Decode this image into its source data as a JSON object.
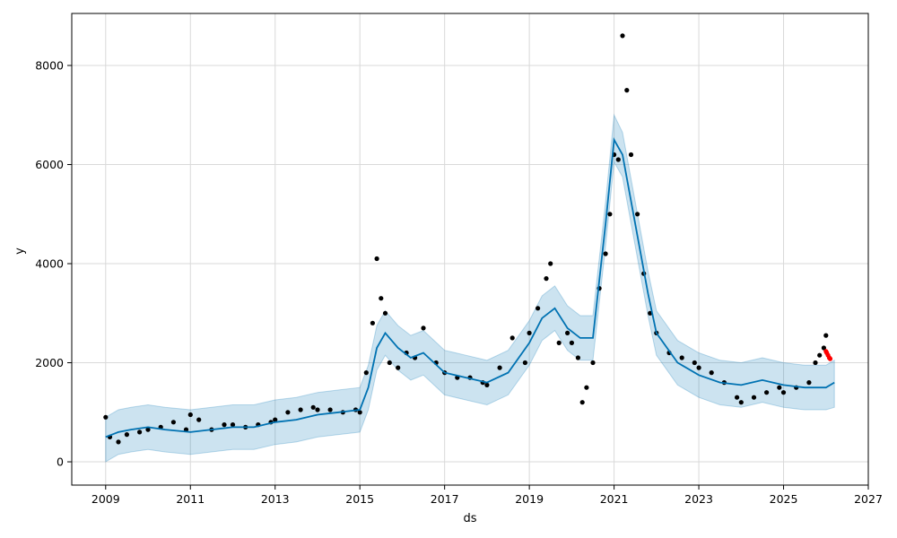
{
  "chart_data": {
    "type": "line",
    "title": "",
    "xlabel": "ds",
    "ylabel": "y",
    "xlim": [
      2008.2,
      2027.0
    ],
    "ylim": [
      -470,
      9050
    ],
    "x_ticks": [
      2009,
      2011,
      2013,
      2015,
      2017,
      2019,
      2021,
      2023,
      2025,
      2027
    ],
    "x_tick_labels": [
      "2009",
      "2011",
      "2013",
      "2015",
      "2017",
      "2019",
      "2021",
      "2023",
      "2025",
      "2027"
    ],
    "y_ticks": [
      0,
      2000,
      4000,
      6000,
      8000
    ],
    "y_tick_labels": [
      "0",
      "2000",
      "4000",
      "6000",
      "8000"
    ],
    "grid": true,
    "colors": {
      "observed": "#000000",
      "forecast_line": "#0072B2",
      "uncertainty_band": "#0072B2",
      "recent_actual": "#ff0000"
    },
    "series": [
      {
        "role": "observed",
        "style": "scatter",
        "x": [
          2009.0,
          2009.1,
          2009.3,
          2009.5,
          2009.8,
          2010.0,
          2010.3,
          2010.6,
          2010.9,
          2011.0,
          2011.2,
          2011.5,
          2011.8,
          2012.0,
          2012.3,
          2012.6,
          2012.9,
          2013.0,
          2013.3,
          2013.6,
          2013.9,
          2014.0,
          2014.3,
          2014.6,
          2014.9,
          2015.0,
          2015.15,
          2015.3,
          2015.4,
          2015.5,
          2015.6,
          2015.7,
          2015.9,
          2016.1,
          2016.3,
          2016.5,
          2016.8,
          2017.0,
          2017.3,
          2017.6,
          2017.9,
          2018.0,
          2018.3,
          2018.6,
          2018.9,
          2019.0,
          2019.2,
          2019.4,
          2019.5,
          2019.7,
          2019.9,
          2020.0,
          2020.15,
          2020.25,
          2020.35,
          2020.5,
          2020.65,
          2020.8,
          2020.9,
          2021.0,
          2021.1,
          2021.2,
          2021.3,
          2021.4,
          2021.55,
          2021.7,
          2021.85,
          2022.0,
          2022.3,
          2022.6,
          2022.9,
          2023.0,
          2023.3,
          2023.6,
          2023.9,
          2024.0,
          2024.3,
          2024.6,
          2024.9,
          2025.0,
          2025.3,
          2025.6,
          2025.75,
          2025.85,
          2025.95,
          2026.0
        ],
        "y": [
          900,
          500,
          400,
          550,
          600,
          650,
          700,
          800,
          650,
          950,
          850,
          650,
          750,
          750,
          700,
          750,
          800,
          850,
          1000,
          1050,
          1100,
          1050,
          1050,
          1000,
          1050,
          1000,
          1800,
          2800,
          4100,
          3300,
          3000,
          2000,
          1900,
          2200,
          2100,
          2700,
          2000,
          1800,
          1700,
          1700,
          1600,
          1550,
          1900,
          2500,
          2000,
          2600,
          3100,
          3700,
          4000,
          2400,
          2600,
          2400,
          2100,
          1200,
          1500,
          2000,
          3500,
          4200,
          5000,
          6200,
          6100,
          8600,
          7500,
          6200,
          5000,
          3800,
          3000,
          2600,
          2200,
          2100,
          2000,
          1900,
          1800,
          1600,
          1300,
          1200,
          1300,
          1400,
          1500,
          1400,
          1500,
          1600,
          2000,
          2150,
          2300,
          2550
        ]
      },
      {
        "role": "recent_actual",
        "style": "scatter",
        "x": [
          2026.0,
          2026.02,
          2026.05,
          2026.08,
          2026.1
        ],
        "y": [
          2230,
          2200,
          2150,
          2100,
          2080
        ]
      },
      {
        "role": "forecast",
        "style": "line",
        "x": [
          2009.0,
          2009.3,
          2009.6,
          2010.0,
          2010.4,
          2011.0,
          2011.5,
          2012.0,
          2012.5,
          2013.0,
          2013.5,
          2014.0,
          2014.5,
          2015.0,
          2015.2,
          2015.4,
          2015.6,
          2015.9,
          2016.2,
          2016.5,
          2017.0,
          2017.5,
          2018.0,
          2018.5,
          2019.0,
          2019.3,
          2019.6,
          2019.9,
          2020.2,
          2020.5,
          2020.8,
          2021.0,
          2021.2,
          2021.5,
          2021.8,
          2022.0,
          2022.5,
          2023.0,
          2023.5,
          2024.0,
          2024.5,
          2025.0,
          2025.5,
          2026.0,
          2026.2
        ],
        "y": [
          500,
          600,
          650,
          700,
          650,
          600,
          650,
          700,
          700,
          800,
          850,
          950,
          1000,
          1050,
          1500,
          2300,
          2600,
          2300,
          2100,
          2200,
          1800,
          1700,
          1600,
          1800,
          2400,
          2900,
          3100,
          2700,
          2500,
          2500,
          4800,
          6500,
          6200,
          4800,
          3400,
          2600,
          2000,
          1750,
          1600,
          1550,
          1650,
          1550,
          1500,
          1500,
          1600
        ],
        "lower": [
          0,
          150,
          200,
          250,
          200,
          150,
          200,
          250,
          250,
          350,
          400,
          500,
          550,
          600,
          1050,
          1850,
          2150,
          1850,
          1650,
          1750,
          1350,
          1250,
          1150,
          1350,
          1950,
          2450,
          2650,
          2250,
          2050,
          2050,
          4350,
          6050,
          5750,
          4350,
          2950,
          2150,
          1550,
          1300,
          1150,
          1100,
          1200,
          1100,
          1050,
          1050,
          1100
        ],
        "upper": [
          900,
          1050,
          1100,
          1150,
          1100,
          1050,
          1100,
          1150,
          1150,
          1250,
          1300,
          1400,
          1450,
          1500,
          1950,
          2750,
          3050,
          2750,
          2550,
          2650,
          2250,
          2150,
          2050,
          2250,
          2850,
          3350,
          3550,
          3150,
          2950,
          2950,
          5250,
          7000,
          6650,
          5250,
          3850,
          3050,
          2450,
          2200,
          2050,
          2000,
          2100,
          2000,
          1950,
          1950,
          2050
        ]
      }
    ]
  }
}
